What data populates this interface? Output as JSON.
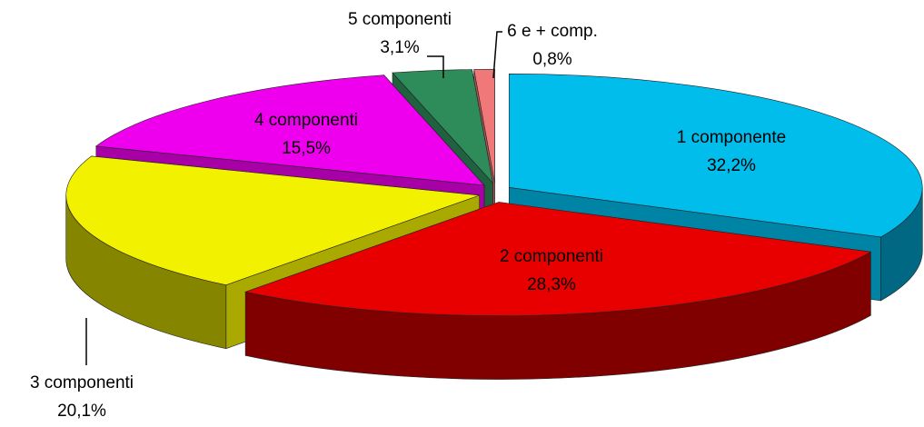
{
  "chart_data": {
    "type": "pie3d",
    "categories": [
      "1 componente",
      "2 componenti",
      "3 componenti",
      "4 componenti",
      "5 componenti",
      "6 e + comp."
    ],
    "values": [
      32.2,
      28.3,
      20.1,
      15.5,
      3.1,
      0.8
    ],
    "value_labels": [
      "32,2%",
      "28,3%",
      "20,1%",
      "15,5%",
      "3,1%",
      "0,8%"
    ],
    "colors": [
      "#00bdec",
      "#e80000",
      "#f2f200",
      "#ee00ee",
      "#2e8b5a",
      "#f07878"
    ]
  }
}
